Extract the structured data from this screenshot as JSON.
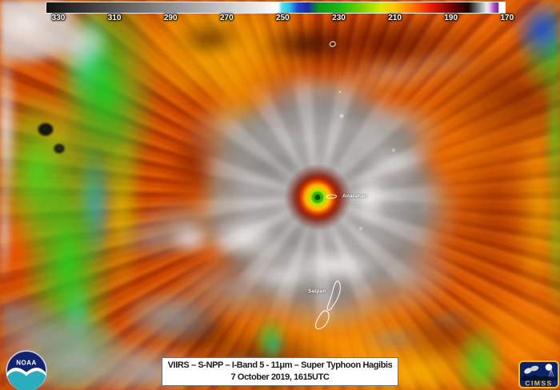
{
  "colorbar": {
    "tick_labels": [
      "330",
      "310",
      "290",
      "270",
      "250",
      "230",
      "210",
      "190",
      "170"
    ]
  },
  "map_labels": {
    "anatahan": "Anatahan",
    "saipan": "Saipan"
  },
  "caption": {
    "line1": "VIIRS – S-NPP – I-Band 5 - 11μm – Super Typhoon Hagibis",
    "line2": "7 October 2019, 1615UTC"
  },
  "logos": {
    "noaa": "NOAA",
    "cimss": "CIMSS"
  },
  "colors": {
    "warm_background": "#c64000",
    "hot_band": "#ff8800",
    "cold_cloud_gray": "#aaaaaa",
    "eye_core_green": "#2fae00",
    "eye_ring_orange": "#ff7c00",
    "cold_cyan": "#3ce4ee",
    "cold_green": "#1db812",
    "label_white": "#ffffff",
    "caption_background": "#ffffff",
    "caption_text": "#1a1a1a",
    "cimss_gold": "#f5c518",
    "noaa_navy": "#13236b",
    "noaa_teal": "#2aaebe"
  }
}
